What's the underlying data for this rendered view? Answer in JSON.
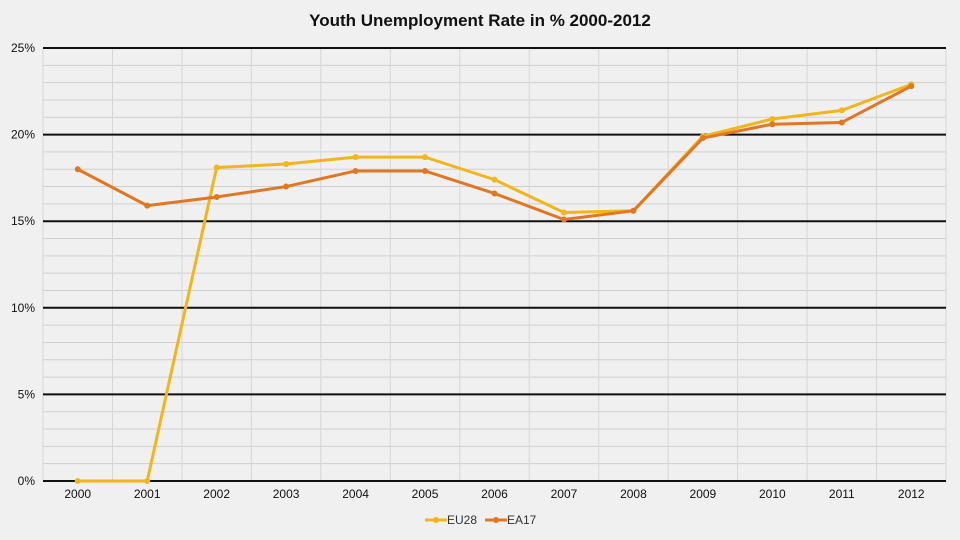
{
  "chart_data": {
    "type": "line",
    "title": "Youth Unemployment Rate in % 2000-2012",
    "categories": [
      "2000",
      "2001",
      "2002",
      "2003",
      "2004",
      "2005",
      "2006",
      "2007",
      "2008",
      "2009",
      "2010",
      "2011",
      "2012"
    ],
    "series": [
      {
        "name": "EU28",
        "color": "#f2b51c",
        "values": [
          0,
          0,
          18.1,
          18.3,
          18.7,
          18.7,
          17.4,
          15.5,
          15.6,
          19.9,
          20.9,
          21.4,
          22.9
        ]
      },
      {
        "name": "EA17",
        "color": "#e17722",
        "values": [
          18.0,
          15.9,
          16.4,
          17.0,
          17.9,
          17.9,
          16.6,
          15.1,
          15.6,
          19.8,
          20.6,
          20.7,
          22.8
        ]
      }
    ],
    "ylim": [
      0,
      25
    ],
    "yticks": [
      "0%",
      "5%",
      "10%",
      "15%",
      "20%",
      "25%"
    ],
    "ytick_values": [
      0,
      5,
      10,
      15,
      20,
      25
    ],
    "xlabel": "",
    "ylabel": "",
    "grid": true,
    "legend_position": "bottom"
  }
}
